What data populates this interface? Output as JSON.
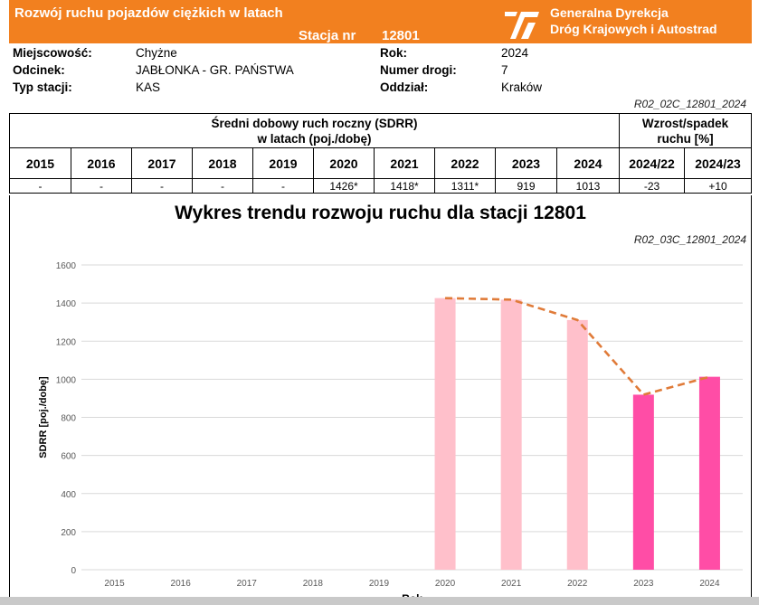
{
  "header": {
    "title": "Rozwój ruchu pojazdów ciężkich w latach",
    "station_label": "Stacja nr",
    "station_number": "12801",
    "org_line1": "Generalna Dyrekcja",
    "org_line2": "Dróg Krajowych i Autostrad",
    "brand_color": "#f2801f"
  },
  "info": {
    "locality_label": "Miejscowość:",
    "locality_value": "Chyżne",
    "section_label": "Odcinek:",
    "section_value": "JABŁONKA - GR. PAŃSTWA",
    "station_type_label": "Typ stacji:",
    "station_type_value": "KAS",
    "year_label": "Rok:",
    "year_value": "2024",
    "road_label": "Numer drogi:",
    "road_value": "7",
    "branch_label": "Oddział:",
    "branch_value": "Kraków",
    "ref_code": "R02_02C_12801_2024"
  },
  "table": {
    "sdrr_header_line1": "Średni dobowy ruch roczny (SDRR)",
    "sdrr_header_line2": "w latach (poj./dobę)",
    "change_header_line1": "Wzrost/spadek",
    "change_header_line2": "ruchu [%]",
    "years": [
      "2015",
      "2016",
      "2017",
      "2018",
      "2019",
      "2020",
      "2021",
      "2022",
      "2023",
      "2024",
      "2024/22",
      "2024/23"
    ],
    "values": [
      "-",
      "-",
      "-",
      "-",
      "-",
      "1426*",
      "1418*",
      "1311*",
      "919",
      "1013",
      "-23",
      "+10"
    ]
  },
  "chart_title": "Wykres trendu rozwoju ruchu dla stacji 12801",
  "chart_ref": "R02_03C_12801_2024",
  "chart_data": {
    "type": "bar",
    "title": "Wykres trendu rozwoju ruchu dla stacji 12801",
    "xlabel": "Rok",
    "ylabel": "SDRR [poj./dobę]",
    "ylim": [
      0,
      1600
    ],
    "yticks": [
      0,
      200,
      400,
      600,
      800,
      1000,
      1200,
      1400,
      1600
    ],
    "grid": true,
    "categories": [
      "2015",
      "2016",
      "2017",
      "2018",
      "2019",
      "2020",
      "2021",
      "2022",
      "2023",
      "2024"
    ],
    "values": [
      null,
      null,
      null,
      null,
      null,
      1426,
      1418,
      1311,
      919,
      1013
    ],
    "bar_colors": [
      null,
      null,
      null,
      null,
      null,
      "#ffc0cb",
      "#ffc0cb",
      "#ffc0cb",
      "#ff4da6",
      "#ff4da6"
    ],
    "trend_line": {
      "style": "dashed",
      "color": "#e07b39",
      "values": [
        null,
        null,
        null,
        null,
        null,
        1426,
        1418,
        1311,
        919,
        1013
      ]
    }
  }
}
